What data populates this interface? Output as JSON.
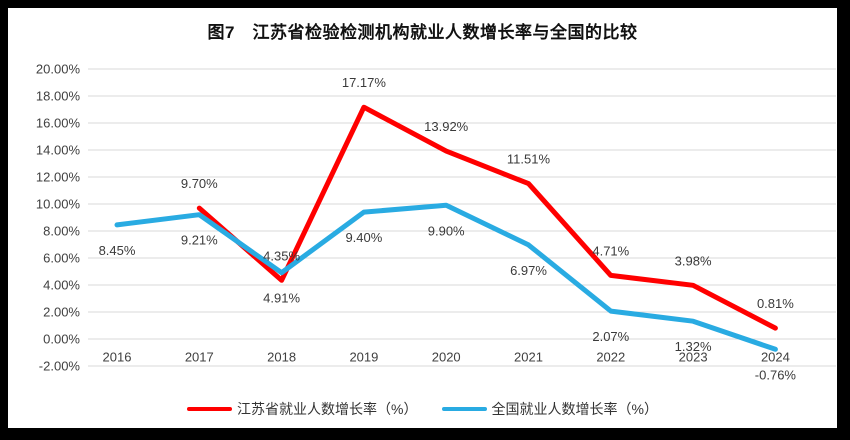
{
  "title": "图7　江苏省检验检测机构就业人数增长率与全国的比较",
  "colors": {
    "frame_background": "#000000",
    "panel_background": "#FFFFFF",
    "gridline": "#D9D9D9",
    "axis_text": "#404040",
    "data_label_text": "#3A3A3A",
    "title_text": "#111111",
    "series_jiangsu": "#FF0000",
    "series_national": "#29ABE2"
  },
  "chart_data": {
    "type": "line",
    "title": "图7　江苏省检验检测机构就业人数增长率与全国的比较",
    "categories": [
      "2016",
      "2017",
      "2018",
      "2019",
      "2020",
      "2021",
      "2022",
      "2023",
      "2024"
    ],
    "series": [
      {
        "name": "江苏省就业人数增长率（%）",
        "color": "#FF0000",
        "label_position": "above",
        "values": [
          null,
          9.7,
          4.35,
          17.17,
          13.92,
          11.51,
          4.71,
          3.98,
          0.81
        ],
        "labels": [
          null,
          "9.70%",
          "4.35%",
          "17.17%",
          "13.92%",
          "11.51%",
          "4.71%",
          "3.98%",
          "0.81%"
        ]
      },
      {
        "name": "全国就业人数增长率（%）",
        "color": "#29ABE2",
        "label_position": "below",
        "values": [
          8.45,
          9.21,
          4.91,
          9.4,
          9.9,
          6.97,
          2.07,
          1.32,
          -0.76
        ],
        "labels": [
          "8.45%",
          "9.21%",
          "4.91%",
          "9.40%",
          "9.90%",
          "6.97%",
          "2.07%",
          "1.32%",
          "-0.76%"
        ]
      }
    ],
    "ylim": [
      -2,
      20
    ],
    "ytick_step": 2,
    "yticks": [
      {
        "label": "20.00%",
        "value": 20
      },
      {
        "label": "18.00%",
        "value": 18
      },
      {
        "label": "16.00%",
        "value": 16
      },
      {
        "label": "14.00%",
        "value": 14
      },
      {
        "label": "12.00%",
        "value": 12
      },
      {
        "label": "10.00%",
        "value": 10
      },
      {
        "label": "8.00%",
        "value": 8
      },
      {
        "label": "6.00%",
        "value": 6
      },
      {
        "label": "4.00%",
        "value": 4
      },
      {
        "label": "2.00%",
        "value": 2
      },
      {
        "label": "0.00%",
        "value": 0
      },
      {
        "label": "-2.00%",
        "value": -2
      }
    ],
    "grid": "horizontal",
    "legend_position": "bottom",
    "data_labels": true
  }
}
